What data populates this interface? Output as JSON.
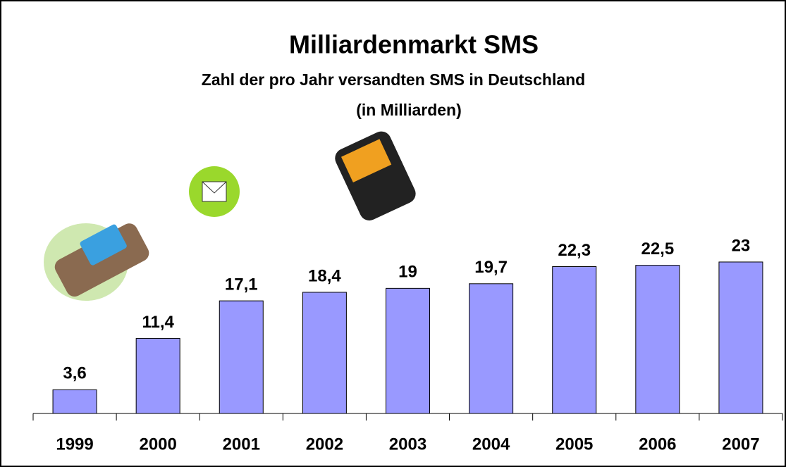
{
  "chart_data": {
    "type": "bar",
    "title": "Milliardenmarkt SMS",
    "subtitle": [
      "Zahl der pro Jahr versandten SMS in Deutschland",
      "(in Milliarden)"
    ],
    "categories": [
      "1999",
      "2000",
      "2001",
      "2002",
      "2003",
      "2004",
      "2005",
      "2006",
      "2007"
    ],
    "values": [
      3.6,
      11.4,
      17.1,
      18.4,
      19,
      19.7,
      22.3,
      22.5,
      23
    ],
    "value_labels": [
      "3,6",
      "11,4",
      "17,1",
      "18,4",
      "19",
      "19,7",
      "22,3",
      "22,5",
      "23"
    ],
    "color": "#9999ff"
  }
}
